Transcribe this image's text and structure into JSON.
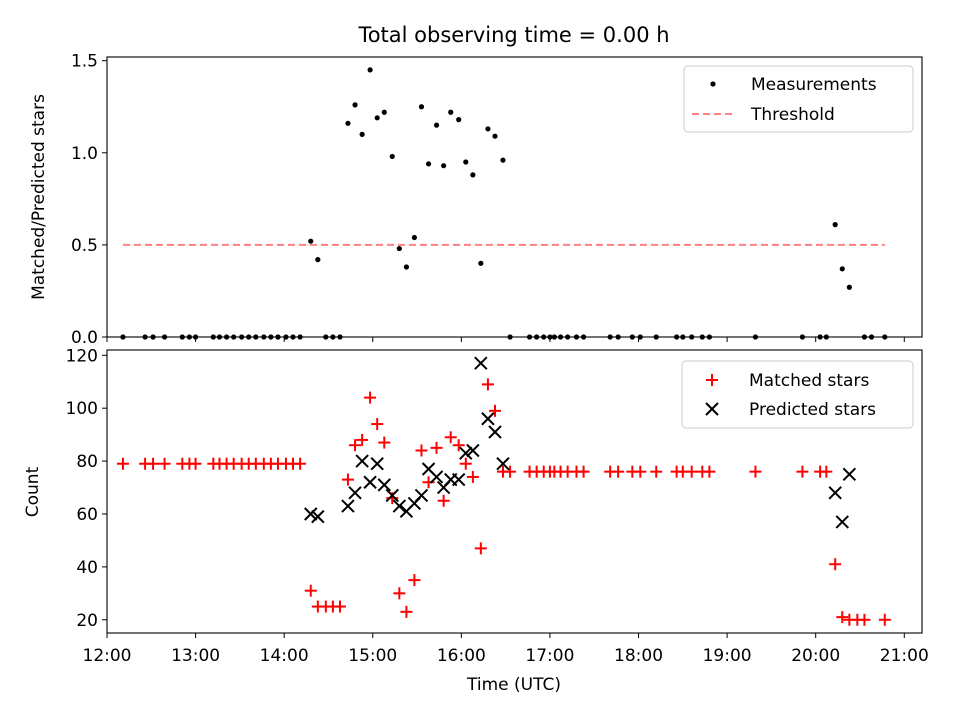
{
  "chart_data": [
    {
      "type": "scatter",
      "title": "Total observing time = 0.00 h",
      "xlabel": "",
      "ylabel": "Matched/Predicted stars",
      "xlim": [
        12.0,
        21.2
      ],
      "ylim": [
        0,
        1.52
      ],
      "yticks": [
        0.0,
        0.5,
        1.0,
        1.5
      ],
      "ytick_labels": [
        "0.0",
        "0.5",
        "1.0",
        "1.5"
      ],
      "legend": {
        "position": "top-right",
        "entries": [
          "Measurements",
          "Threshold"
        ]
      },
      "series": [
        {
          "name": "Measurements",
          "kind": "points",
          "color": "#000000",
          "points": [
            [
              12.18,
              0
            ],
            [
              12.43,
              0
            ],
            [
              12.52,
              0
            ],
            [
              12.65,
              0
            ],
            [
              12.85,
              0
            ],
            [
              12.93,
              0
            ],
            [
              13.0,
              0
            ],
            [
              13.2,
              0
            ],
            [
              13.27,
              0
            ],
            [
              13.35,
              0
            ],
            [
              13.43,
              0
            ],
            [
              13.52,
              0
            ],
            [
              13.6,
              0
            ],
            [
              13.68,
              0
            ],
            [
              13.77,
              0
            ],
            [
              13.85,
              0
            ],
            [
              13.93,
              0
            ],
            [
              14.02,
              0
            ],
            [
              14.1,
              0
            ],
            [
              14.18,
              0
            ],
            [
              14.3,
              0.52
            ],
            [
              14.38,
              0.42
            ],
            [
              14.47,
              0
            ],
            [
              14.55,
              0
            ],
            [
              14.63,
              0
            ],
            [
              14.72,
              1.16
            ],
            [
              14.8,
              1.26
            ],
            [
              14.88,
              1.1
            ],
            [
              14.97,
              1.45
            ],
            [
              15.05,
              1.19
            ],
            [
              15.13,
              1.22
            ],
            [
              15.22,
              0.98
            ],
            [
              15.3,
              0.48
            ],
            [
              15.38,
              0.38
            ],
            [
              15.47,
              0.54
            ],
            [
              15.55,
              1.25
            ],
            [
              15.63,
              0.94
            ],
            [
              15.72,
              1.15
            ],
            [
              15.8,
              0.93
            ],
            [
              15.88,
              1.22
            ],
            [
              15.97,
              1.18
            ],
            [
              16.05,
              0.95
            ],
            [
              16.13,
              0.88
            ],
            [
              16.22,
              0.4
            ],
            [
              16.3,
              1.13
            ],
            [
              16.38,
              1.09
            ],
            [
              16.47,
              0.96
            ],
            [
              16.55,
              0
            ],
            [
              16.77,
              0
            ],
            [
              16.85,
              0
            ],
            [
              16.93,
              0
            ],
            [
              17.0,
              0
            ],
            [
              17.05,
              0
            ],
            [
              17.12,
              0
            ],
            [
              17.2,
              0
            ],
            [
              17.3,
              0
            ],
            [
              17.38,
              0
            ],
            [
              17.68,
              0
            ],
            [
              17.77,
              0
            ],
            [
              17.93,
              0
            ],
            [
              18.02,
              0
            ],
            [
              18.2,
              0
            ],
            [
              18.43,
              0
            ],
            [
              18.5,
              0
            ],
            [
              18.6,
              0
            ],
            [
              18.72,
              0
            ],
            [
              18.8,
              0
            ],
            [
              19.32,
              0
            ],
            [
              19.85,
              0
            ],
            [
              20.05,
              0
            ],
            [
              20.12,
              0
            ],
            [
              20.22,
              0.61
            ],
            [
              20.3,
              0.37
            ],
            [
              20.38,
              0.27
            ],
            [
              20.55,
              0
            ],
            [
              20.63,
              0
            ],
            [
              20.78,
              0
            ]
          ]
        },
        {
          "name": "Threshold",
          "kind": "dashed-line",
          "color": "#ff8080",
          "x": [
            12.18,
            20.78
          ],
          "y": [
            0.5,
            0.5
          ]
        }
      ]
    },
    {
      "type": "scatter",
      "title": "",
      "xlabel": "Time (UTC)",
      "ylabel": "Count",
      "xlim": [
        12.0,
        21.2
      ],
      "ylim": [
        15,
        122
      ],
      "yticks": [
        20,
        40,
        60,
        80,
        100,
        120
      ],
      "ytick_labels": [
        "20",
        "40",
        "60",
        "80",
        "100",
        "120"
      ],
      "xticks": [
        12,
        13,
        14,
        15,
        16,
        17,
        18,
        19,
        20,
        21
      ],
      "xtick_labels": [
        "12:00",
        "13:00",
        "14:00",
        "15:00",
        "16:00",
        "17:00",
        "18:00",
        "19:00",
        "20:00",
        "21:00"
      ],
      "legend": {
        "position": "top-right",
        "entries": [
          "Matched stars",
          "Predicted stars"
        ]
      },
      "series": [
        {
          "name": "Matched stars",
          "kind": "plus",
          "color": "#ff0000",
          "points": [
            [
              12.18,
              79
            ],
            [
              12.43,
              79
            ],
            [
              12.52,
              79
            ],
            [
              12.65,
              79
            ],
            [
              12.85,
              79
            ],
            [
              12.93,
              79
            ],
            [
              13.0,
              79
            ],
            [
              13.2,
              79
            ],
            [
              13.27,
              79
            ],
            [
              13.35,
              79
            ],
            [
              13.43,
              79
            ],
            [
              13.52,
              79
            ],
            [
              13.6,
              79
            ],
            [
              13.68,
              79
            ],
            [
              13.77,
              79
            ],
            [
              13.85,
              79
            ],
            [
              13.93,
              79
            ],
            [
              14.02,
              79
            ],
            [
              14.1,
              79
            ],
            [
              14.18,
              79
            ],
            [
              14.3,
              31
            ],
            [
              14.38,
              25
            ],
            [
              14.47,
              25
            ],
            [
              14.55,
              25
            ],
            [
              14.63,
              25
            ],
            [
              14.72,
              73
            ],
            [
              14.8,
              86
            ],
            [
              14.88,
              88
            ],
            [
              14.97,
              104
            ],
            [
              15.05,
              94
            ],
            [
              15.13,
              87
            ],
            [
              15.22,
              66
            ],
            [
              15.3,
              30
            ],
            [
              15.38,
              23
            ],
            [
              15.47,
              35
            ],
            [
              15.55,
              84
            ],
            [
              15.63,
              72
            ],
            [
              15.72,
              85
            ],
            [
              15.8,
              65
            ],
            [
              15.88,
              89
            ],
            [
              15.97,
              86
            ],
            [
              16.05,
              79
            ],
            [
              16.13,
              74
            ],
            [
              16.22,
              47
            ],
            [
              16.3,
              109
            ],
            [
              16.38,
              99
            ],
            [
              16.47,
              76
            ],
            [
              16.55,
              76
            ],
            [
              16.77,
              76
            ],
            [
              16.85,
              76
            ],
            [
              16.93,
              76
            ],
            [
              17.0,
              76
            ],
            [
              17.05,
              76
            ],
            [
              17.12,
              76
            ],
            [
              17.2,
              76
            ],
            [
              17.3,
              76
            ],
            [
              17.38,
              76
            ],
            [
              17.68,
              76
            ],
            [
              17.77,
              76
            ],
            [
              17.93,
              76
            ],
            [
              18.02,
              76
            ],
            [
              18.2,
              76
            ],
            [
              18.43,
              76
            ],
            [
              18.5,
              76
            ],
            [
              18.6,
              76
            ],
            [
              18.72,
              76
            ],
            [
              18.8,
              76
            ],
            [
              19.32,
              76
            ],
            [
              19.85,
              76
            ],
            [
              20.05,
              76
            ],
            [
              20.12,
              76
            ],
            [
              20.22,
              41
            ],
            [
              20.3,
              21
            ],
            [
              20.38,
              20
            ],
            [
              20.47,
              20
            ],
            [
              20.55,
              20
            ],
            [
              20.78,
              20
            ]
          ]
        },
        {
          "name": "Predicted stars",
          "kind": "cross",
          "color": "#000000",
          "points": [
            [
              14.3,
              60
            ],
            [
              14.38,
              59
            ],
            [
              14.72,
              63
            ],
            [
              14.8,
              68
            ],
            [
              14.88,
              80
            ],
            [
              14.97,
              72
            ],
            [
              15.05,
              79
            ],
            [
              15.13,
              71
            ],
            [
              15.22,
              67
            ],
            [
              15.3,
              63
            ],
            [
              15.38,
              61
            ],
            [
              15.47,
              64
            ],
            [
              15.55,
              67
            ],
            [
              15.63,
              77
            ],
            [
              15.72,
              74
            ],
            [
              15.8,
              70
            ],
            [
              15.88,
              73
            ],
            [
              15.97,
              73
            ],
            [
              16.05,
              83
            ],
            [
              16.13,
              84
            ],
            [
              16.22,
              117
            ],
            [
              16.3,
              96
            ],
            [
              16.38,
              91
            ],
            [
              16.47,
              79
            ],
            [
              20.22,
              68
            ],
            [
              20.3,
              57
            ],
            [
              20.38,
              75
            ]
          ]
        }
      ]
    }
  ]
}
